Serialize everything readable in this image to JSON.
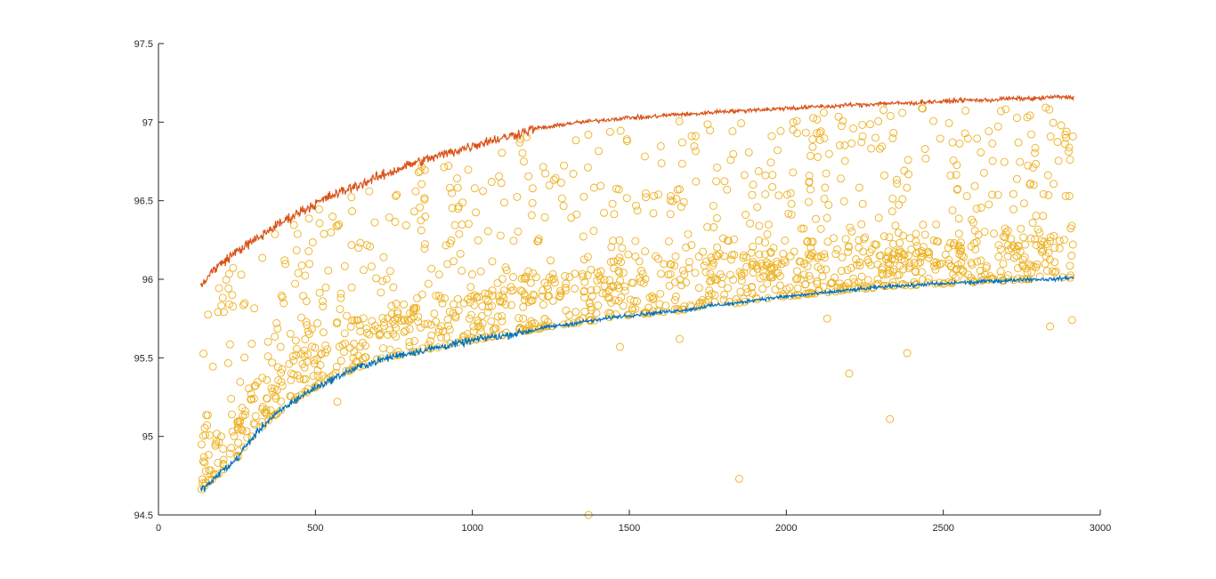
{
  "chart_data": {
    "type": "line",
    "title": "",
    "xlabel": "",
    "ylabel": "",
    "xlim": [
      0,
      3000
    ],
    "ylim": [
      94.5,
      97.5
    ],
    "grid": false,
    "legend": "none",
    "x_ticks": [
      "0",
      "500",
      "1000",
      "1500",
      "2000",
      "2500",
      "3000"
    ],
    "y_ticks": [
      "94.5",
      "95",
      "95.5",
      "96",
      "96.5",
      "97",
      "97.5"
    ],
    "series": [
      {
        "kind": "line",
        "color": "#0072BD",
        "x": [
          135,
          150,
          175,
          200,
          225,
          250,
          275,
          300,
          325,
          350,
          375,
          400,
          450,
          500,
          550,
          600,
          650,
          700,
          750,
          800,
          850,
          900,
          950,
          1000,
          1050,
          1100,
          1150,
          1200,
          1250,
          1300,
          1350,
          1400,
          1450,
          1500,
          1550,
          1600,
          1650,
          1700,
          1750,
          1800,
          1850,
          1900,
          1950,
          2000,
          2050,
          2100,
          2150,
          2200,
          2250,
          2300,
          2350,
          2400,
          2450,
          2500,
          2550,
          2600,
          2650,
          2700,
          2750,
          2800,
          2850,
          2900,
          2915
        ],
        "y": [
          94.66,
          94.68,
          94.72,
          94.78,
          94.81,
          94.86,
          94.93,
          94.99,
          95.05,
          95.1,
          95.14,
          95.18,
          95.25,
          95.31,
          95.36,
          95.41,
          95.45,
          95.48,
          95.51,
          95.53,
          95.55,
          95.57,
          95.59,
          95.61,
          95.63,
          95.64,
          95.66,
          95.68,
          95.7,
          95.71,
          95.73,
          95.74,
          95.76,
          95.77,
          95.78,
          95.79,
          95.8,
          95.81,
          95.83,
          95.84,
          95.85,
          95.87,
          95.88,
          95.89,
          95.9,
          95.91,
          95.92,
          95.93,
          95.94,
          95.95,
          95.96,
          95.96,
          95.97,
          95.97,
          95.98,
          95.98,
          95.99,
          95.99,
          96.0,
          96.0,
          96.0,
          96.01,
          96.01
        ]
      },
      {
        "kind": "line",
        "color": "#D95319",
        "x": [
          135,
          150,
          175,
          200,
          225,
          250,
          275,
          300,
          325,
          350,
          375,
          400,
          450,
          500,
          550,
          600,
          650,
          700,
          750,
          800,
          850,
          900,
          950,
          1000,
          1050,
          1100,
          1150,
          1200,
          1250,
          1300,
          1350,
          1400,
          1450,
          1500,
          1550,
          1600,
          1650,
          1700,
          1750,
          1800,
          1850,
          1900,
          1950,
          2000,
          2050,
          2100,
          2150,
          2200,
          2250,
          2300,
          2350,
          2400,
          2450,
          2500,
          2550,
          2600,
          2650,
          2700,
          2750,
          2800,
          2850,
          2900,
          2915
        ],
        "y": [
          95.95,
          96.0,
          96.06,
          96.1,
          96.14,
          96.18,
          96.21,
          96.24,
          96.27,
          96.31,
          96.34,
          96.37,
          96.43,
          96.48,
          96.53,
          96.57,
          96.61,
          96.65,
          96.69,
          96.73,
          96.76,
          96.79,
          96.82,
          96.85,
          96.88,
          96.9,
          96.93,
          96.96,
          96.97,
          96.99,
          97.0,
          97.01,
          97.02,
          97.03,
          97.03,
          97.04,
          97.05,
          97.05,
          97.06,
          97.07,
          97.07,
          97.08,
          97.08,
          97.09,
          97.09,
          97.1,
          97.1,
          97.11,
          97.11,
          97.12,
          97.12,
          97.12,
          97.13,
          97.13,
          97.14,
          97.14,
          97.14,
          97.15,
          97.15,
          97.15,
          97.16,
          97.16,
          97.16
        ]
      },
      {
        "kind": "scatter",
        "marker": "circle",
        "color": "#EDB120",
        "x": [
          1370,
          1850,
          1470,
          1660,
          2130,
          2200,
          2330,
          2385,
          2840,
          2910,
          570,
          150,
          200,
          260
        ],
        "y": [
          94.5,
          94.73,
          95.57,
          95.62,
          95.75,
          95.4,
          95.11,
          95.53,
          95.7,
          95.74,
          95.22,
          95.01,
          95.0,
          95.1
        ]
      }
    ]
  }
}
